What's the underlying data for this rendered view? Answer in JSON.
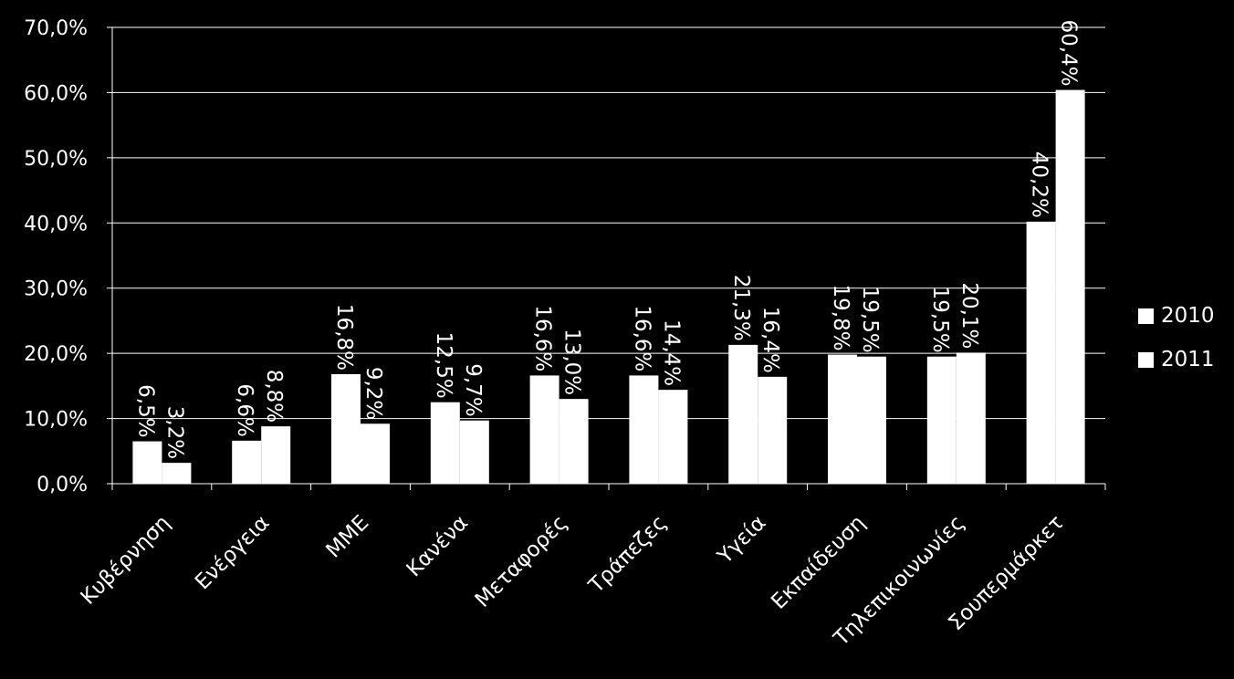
{
  "chart_data": {
    "type": "bar",
    "categories": [
      "Κυβέρνηση",
      "Ενέργεια",
      "ΜΜΕ",
      "Κανένα",
      "Μεταφορές",
      "Τράπεζες",
      "Υγεία",
      "Εκπαίδευση",
      "Τηλεπικοινωνίες",
      "Σουπερμάρκετ"
    ],
    "series": [
      {
        "name": "2010",
        "values": [
          6.5,
          6.6,
          16.8,
          12.5,
          16.6,
          16.6,
          21.3,
          19.8,
          19.5,
          40.2
        ],
        "labels": [
          "6,5%",
          "6,6%",
          "16,8%",
          "12,5%",
          "16,6%",
          "16,6%",
          "21,3%",
          "19,8%",
          "19,5%",
          "40,2%"
        ]
      },
      {
        "name": "2011",
        "values": [
          3.2,
          8.8,
          9.2,
          9.7,
          13.0,
          14.4,
          16.4,
          19.5,
          20.1,
          60.4
        ],
        "labels": [
          "3,2%",
          "8,8%",
          "9,2%",
          "9,7%",
          "13,0%",
          "14,4%",
          "16,4%",
          "19,5%",
          "20,1%",
          "60,4%"
        ]
      }
    ],
    "ylim": [
      0,
      70
    ],
    "yticks": [
      "0,0%",
      "10,0%",
      "20,0%",
      "30,0%",
      "40,0%",
      "50,0%",
      "60,0%",
      "70,0%"
    ],
    "grid": true,
    "legend_position": "right",
    "colors": {
      "background": "#000000",
      "bars": "#ffffff",
      "grid": "#ffffff",
      "text": "#ffffff"
    }
  }
}
